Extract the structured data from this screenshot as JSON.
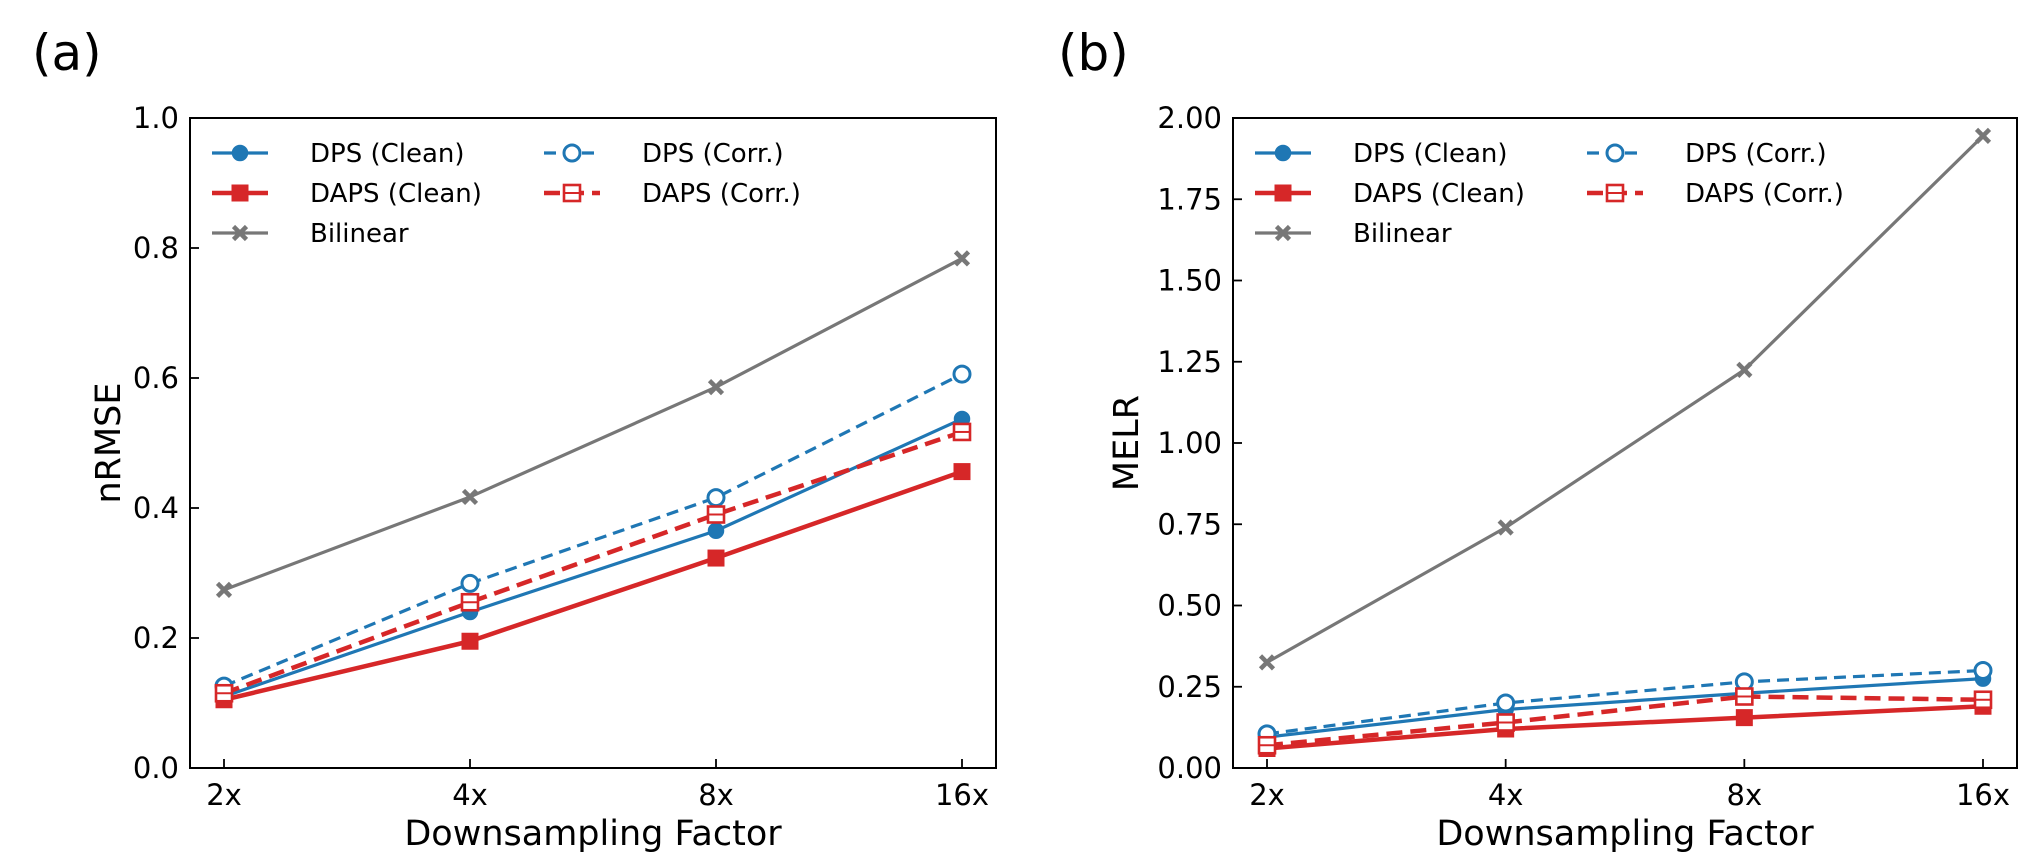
{
  "chart_data": [
    {
      "type": "line",
      "panel_label": "(a)",
      "title": "",
      "xlabel": "Downsampling Factor",
      "ylabel": "nRMSE",
      "categories": [
        "2x",
        "4x",
        "8x",
        "16x"
      ],
      "ylim": [
        0,
        1.0
      ],
      "yticks": [
        0.0,
        0.2,
        0.4,
        0.6,
        0.8,
        1.0
      ],
      "ytick_labels": [
        "0.0",
        "0.2",
        "0.4",
        "0.6",
        "0.8",
        "1.0"
      ],
      "grid": false,
      "legend_position": "top-left",
      "series": [
        {
          "name": "DPS (Clean)",
          "values": [
            0.11,
            0.24,
            0.365,
            0.537
          ],
          "color": "#1f77b4",
          "dash": "solid",
          "marker": "circle-filled"
        },
        {
          "name": "DAPS (Clean)",
          "values": [
            0.105,
            0.195,
            0.323,
            0.456
          ],
          "color": "#d62728",
          "dash": "solid",
          "marker": "square-filled"
        },
        {
          "name": "Bilinear",
          "values": [
            0.274,
            0.417,
            0.586,
            0.784
          ],
          "color": "#777777",
          "dash": "solid",
          "marker": "x"
        },
        {
          "name": "DPS (Corr.)",
          "values": [
            0.126,
            0.284,
            0.416,
            0.606
          ],
          "color": "#1f77b4",
          "dash": "dashed",
          "marker": "circle-open"
        },
        {
          "name": "DAPS (Corr.)",
          "values": [
            0.115,
            0.255,
            0.39,
            0.517
          ],
          "color": "#d62728",
          "dash": "dashed",
          "marker": "square-open"
        }
      ]
    },
    {
      "type": "line",
      "panel_label": "(b)",
      "title": "",
      "xlabel": "Downsampling Factor",
      "ylabel": "MELR",
      "categories": [
        "2x",
        "4x",
        "8x",
        "16x"
      ],
      "ylim": [
        0,
        2.0
      ],
      "yticks": [
        0.0,
        0.25,
        0.5,
        0.75,
        1.0,
        1.25,
        1.5,
        1.75,
        2.0
      ],
      "ytick_labels": [
        "0.00",
        "0.25",
        "0.50",
        "0.75",
        "1.00",
        "1.25",
        "1.50",
        "1.75",
        "2.00"
      ],
      "grid": false,
      "legend_position": "top-left",
      "series": [
        {
          "name": "DPS (Clean)",
          "values": [
            0.095,
            0.18,
            0.23,
            0.275
          ],
          "color": "#1f77b4",
          "dash": "solid",
          "marker": "circle-filled"
        },
        {
          "name": "DAPS (Clean)",
          "values": [
            0.06,
            0.12,
            0.155,
            0.19
          ],
          "color": "#d62728",
          "dash": "solid",
          "marker": "square-filled"
        },
        {
          "name": "Bilinear",
          "values": [
            0.325,
            0.74,
            1.225,
            1.945
          ],
          "color": "#777777",
          "dash": "solid",
          "marker": "x"
        },
        {
          "name": "DPS (Corr.)",
          "values": [
            0.105,
            0.2,
            0.265,
            0.3
          ],
          "color": "#1f77b4",
          "dash": "dashed",
          "marker": "circle-open"
        },
        {
          "name": "DAPS (Corr.)",
          "values": [
            0.07,
            0.14,
            0.22,
            0.21
          ],
          "color": "#d62728",
          "dash": "dashed",
          "marker": "square-open"
        }
      ]
    }
  ]
}
